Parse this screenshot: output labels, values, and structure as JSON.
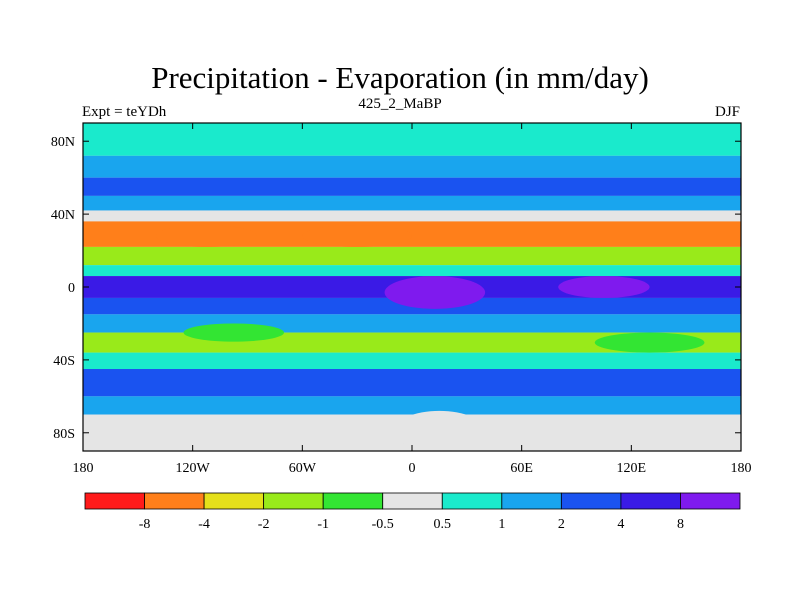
{
  "title": "Precipitation - Evaporation (in mm/day)",
  "subtitle": "425_2_MaBP",
  "left_label": "Expt = teYDh",
  "right_label": "DJF",
  "chart_data": {
    "type": "heatmap",
    "title": "Precipitation - Evaporation (in mm/day)",
    "subtitle": "425_2_MaBP",
    "experiment": "Expt = teYDh",
    "season": "DJF",
    "x_ticks": [
      {
        "value": -180,
        "label": "180"
      },
      {
        "value": -120,
        "label": "120W"
      },
      {
        "value": -60,
        "label": "60W"
      },
      {
        "value": 0,
        "label": "0"
      },
      {
        "value": 60,
        "label": "60E"
      },
      {
        "value": 120,
        "label": "120E"
      },
      {
        "value": 180,
        "label": "180"
      }
    ],
    "y_ticks": [
      {
        "value": 80,
        "label": "80N"
      },
      {
        "value": 40,
        "label": "40N"
      },
      {
        "value": 0,
        "label": "0"
      },
      {
        "value": -40,
        "label": "40S"
      },
      {
        "value": -80,
        "label": "80S"
      }
    ],
    "xlim": [
      -180,
      180
    ],
    "ylim": [
      -90,
      90
    ],
    "colorbar": {
      "levels": [
        "-8",
        "-4",
        "-2",
        "-1",
        "-0.5",
        "0.5",
        "1",
        "2",
        "4",
        "8"
      ],
      "colors": [
        "#ff1a1a",
        "#ff7f1a",
        "#e5e01a",
        "#99ea1a",
        "#33e533",
        "#e5e5e5",
        "#1aeacc",
        "#19a5ee",
        "#1a53f0",
        "#3a1ae6",
        "#7f1aee"
      ]
    },
    "zonal_bands": [
      {
        "lat": [
          72,
          90
        ],
        "value": 0.7
      },
      {
        "lat": [
          60,
          72
        ],
        "value": 1.5
      },
      {
        "lat": [
          50,
          60
        ],
        "value": 3.0
      },
      {
        "lat": [
          42,
          50
        ],
        "value": 1.5
      },
      {
        "lat": [
          36,
          42
        ],
        "value": -0.2
      },
      {
        "lat": [
          22,
          36
        ],
        "value": -4.5
      },
      {
        "lat": [
          12,
          22
        ],
        "value": -1.5
      },
      {
        "lat": [
          6,
          12
        ],
        "value": 0.7
      },
      {
        "lat": [
          -6,
          6
        ],
        "value": 5.0
      },
      {
        "lat": [
          -15,
          -6
        ],
        "value": 3.0
      },
      {
        "lat": [
          -25,
          -15
        ],
        "value": 1.5
      },
      {
        "lat": [
          -36,
          -25
        ],
        "value": -1.5
      },
      {
        "lat": [
          -45,
          -36
        ],
        "value": 0.7
      },
      {
        "lat": [
          -60,
          -45
        ],
        "value": 2.2
      },
      {
        "lat": [
          -70,
          -60
        ],
        "value": 1.2
      },
      {
        "lat": [
          -90,
          -70
        ],
        "value": 0.0
      }
    ],
    "features": [
      {
        "lon": [
          -140,
          -85
        ],
        "lat": [
          22,
          34
        ],
        "value": -5.0
      },
      {
        "lon": [
          -60,
          0
        ],
        "lat": [
          22,
          34
        ],
        "value": -5.5
      },
      {
        "lon": [
          55,
          100
        ],
        "lat": [
          -35,
          -25
        ],
        "value": -1.6
      },
      {
        "lon": [
          -15,
          40
        ],
        "lat": [
          -12,
          6
        ],
        "value": 9.0
      },
      {
        "lon": [
          80,
          130
        ],
        "lat": [
          -6,
          6
        ],
        "value": 9.0
      },
      {
        "lon": [
          -125,
          -70
        ],
        "lat": [
          -30,
          -20
        ],
        "value": -0.8
      },
      {
        "lon": [
          -10,
          40
        ],
        "lat": [
          -90,
          -68
        ],
        "value": 0.0
      },
      {
        "lon": [
          100,
          160
        ],
        "lat": [
          -36,
          -25
        ],
        "value": -0.8
      }
    ]
  }
}
